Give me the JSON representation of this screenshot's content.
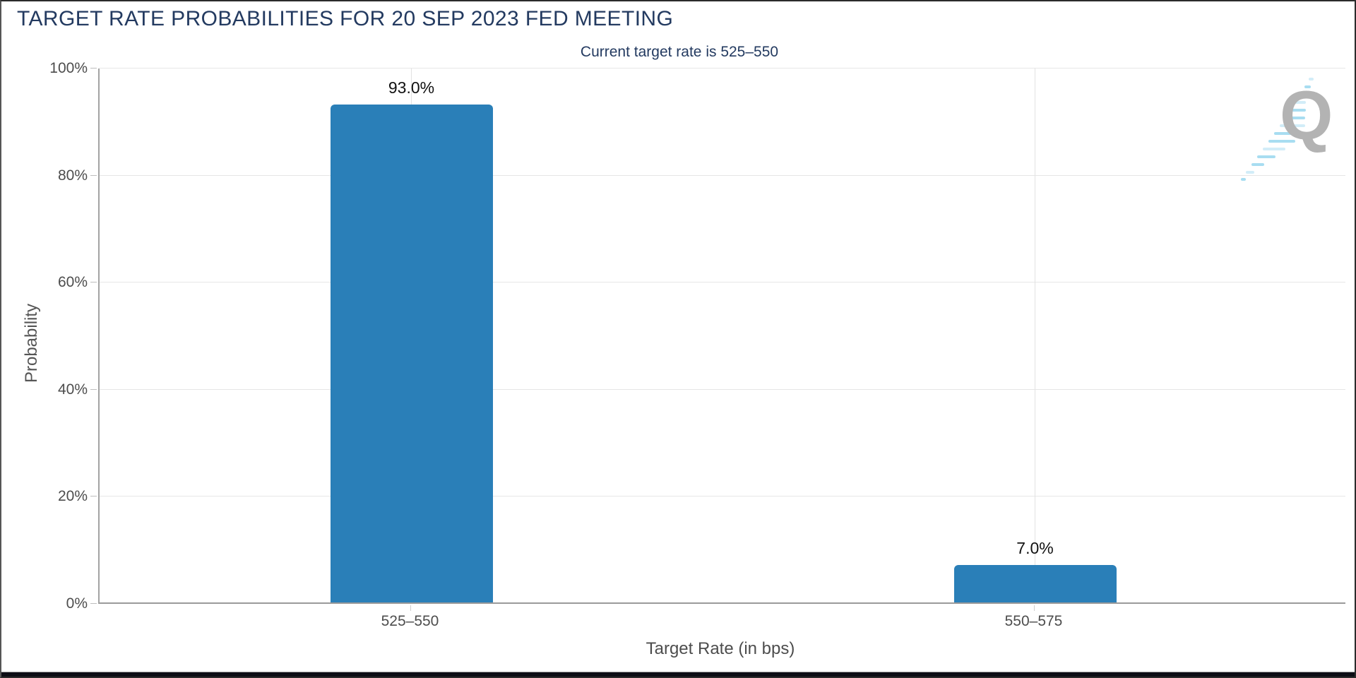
{
  "header": {
    "title": "TARGET RATE PROBABILITIES FOR 20 SEP 2023 FED MEETING",
    "subtitle": "Current target rate is 525–550"
  },
  "watermark": {
    "letter": "Q",
    "letter_color": "#b3b3b3",
    "dash_color_primary": "#a8ddf1",
    "dash_color_secondary": "#d2edf8"
  },
  "colors": {
    "bar": "#2a7fb8",
    "title_text": "#233a60",
    "axis_text": "#4d4d4d",
    "gridline": "#e6e6e6",
    "footer_bar": "#0d0d15"
  },
  "chart_data": {
    "type": "bar",
    "title": "TARGET RATE PROBABILITIES FOR 20 SEP 2023 FED MEETING",
    "subtitle": "Current target rate is 525–550",
    "categories": [
      "525–550",
      "550–575"
    ],
    "values": [
      93.0,
      7.0
    ],
    "value_labels": [
      "93.0%",
      "7.0%"
    ],
    "xlabel": "Target Rate (in bps)",
    "ylabel": "Probability",
    "ylim": [
      0,
      100
    ],
    "ytick_step": 20,
    "ytick_labels": [
      "0%",
      "20%",
      "40%",
      "60%",
      "80%",
      "100%"
    ],
    "grid": true,
    "legend": false,
    "bar_color": "#2a7fb8"
  }
}
